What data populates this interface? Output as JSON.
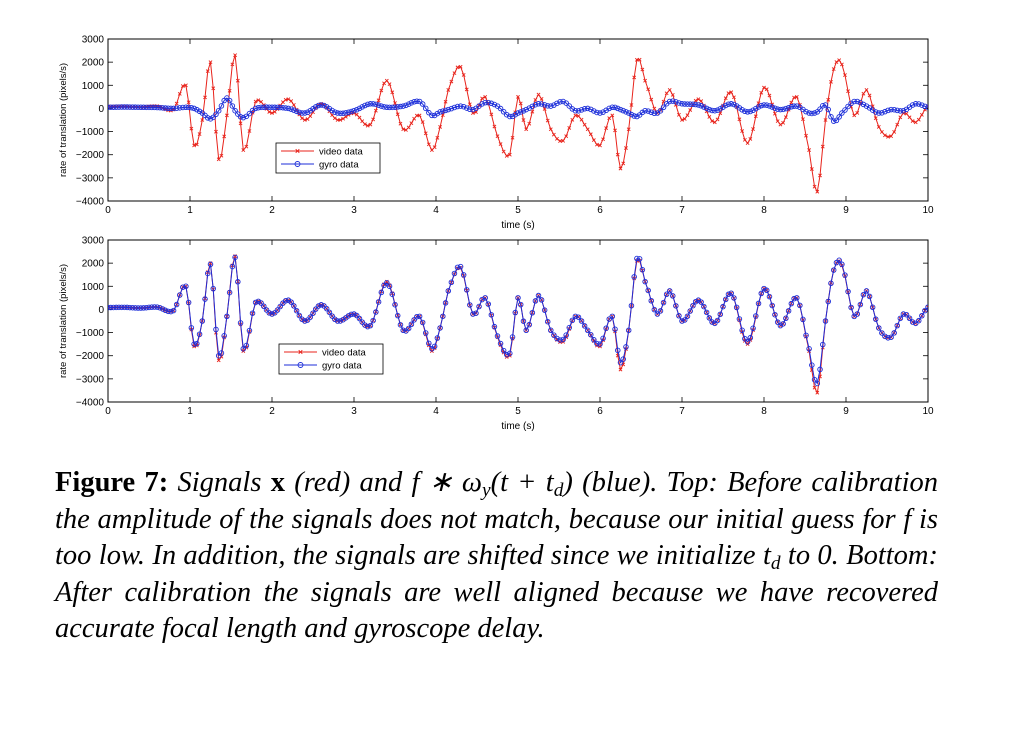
{
  "chart_data": [
    {
      "type": "line",
      "panel": "top",
      "xlabel": "time (s)",
      "ylabel": "rate of translation (pixels/s)",
      "xlim": [
        0,
        10
      ],
      "ylim": [
        -4000,
        3000
      ],
      "x_ticks": [
        "0",
        "1",
        "2",
        "3",
        "4",
        "5",
        "6",
        "7",
        "8",
        "9",
        "10"
      ],
      "y_ticks": [
        "3000",
        "2000",
        "1000",
        "0",
        "−1000",
        "−2000",
        "−3000",
        "−4000"
      ],
      "grid": false,
      "legend_position": "lower-left",
      "x": [
        0,
        0.2,
        0.4,
        0.6,
        0.8,
        0.95,
        1.05,
        1.15,
        1.25,
        1.35,
        1.45,
        1.55,
        1.65,
        1.8,
        2.0,
        2.2,
        2.4,
        2.6,
        2.8,
        3.0,
        3.2,
        3.4,
        3.6,
        3.8,
        3.95,
        4.05,
        4.15,
        4.3,
        4.45,
        4.6,
        4.75,
        4.9,
        5.0,
        5.1,
        5.25,
        5.4,
        5.55,
        5.7,
        5.85,
        6.0,
        6.15,
        6.25,
        6.35,
        6.45,
        6.55,
        6.7,
        6.85,
        7.0,
        7.2,
        7.4,
        7.6,
        7.8,
        8.0,
        8.2,
        8.4,
        8.55,
        8.65,
        8.75,
        8.85,
        8.95,
        9.1,
        9.25,
        9.4,
        9.55,
        9.7,
        9.85,
        10.0
      ],
      "series": [
        {
          "name": "video data",
          "color": "#e8231b",
          "marker": "x",
          "values": [
            80,
            90,
            60,
            100,
            -50,
            1000,
            -1600,
            -500,
            2000,
            -2200,
            -300,
            2300,
            -1800,
            300,
            -200,
            400,
            -500,
            200,
            -500,
            -200,
            -700,
            1200,
            -900,
            -300,
            -1800,
            -800,
            800,
            1800,
            -200,
            500,
            -1200,
            -2000,
            500,
            -900,
            600,
            -900,
            -1400,
            -300,
            -900,
            -1600,
            -300,
            -2600,
            -900,
            2100,
            1200,
            -200,
            800,
            -500,
            400,
            -600,
            700,
            -1500,
            900,
            -700,
            500,
            -1800,
            -3600,
            -500,
            1700,
            1900,
            -300,
            800,
            -800,
            -1200,
            -200,
            -600,
            100
          ]
        },
        {
          "name": "gyro data",
          "color": "#1c2ed9",
          "marker": "o",
          "values": [
            50,
            60,
            50,
            40,
            0,
            50,
            0,
            -200,
            -450,
            -100,
            450,
            -100,
            -400,
            0,
            50,
            0,
            -200,
            150,
            -200,
            -100,
            200,
            50,
            100,
            300,
            -300,
            -150,
            -50,
            100,
            -50,
            250,
            100,
            -350,
            -200,
            -50,
            200,
            100,
            300,
            -100,
            0,
            -200,
            50,
            -50,
            -200,
            -350,
            -100,
            -200,
            300,
            200,
            150,
            -100,
            200,
            -150,
            150,
            -50,
            100,
            -200,
            -150,
            150,
            -550,
            -200,
            300,
            100,
            -200,
            -50,
            -100,
            200,
            50
          ]
        }
      ]
    },
    {
      "type": "line",
      "panel": "bottom",
      "xlabel": "time (s)",
      "ylabel": "rate of translation (pixels/s)",
      "xlim": [
        0,
        10
      ],
      "ylim": [
        -4000,
        3000
      ],
      "x_ticks": [
        "0",
        "1",
        "2",
        "3",
        "4",
        "5",
        "6",
        "7",
        "8",
        "9",
        "10"
      ],
      "y_ticks": [
        "3000",
        "2000",
        "1000",
        "0",
        "−1000",
        "−2000",
        "−3000",
        "−4000"
      ],
      "grid": false,
      "legend_position": "lower-left",
      "x": [
        0,
        0.2,
        0.4,
        0.6,
        0.8,
        0.95,
        1.05,
        1.15,
        1.25,
        1.35,
        1.45,
        1.55,
        1.65,
        1.8,
        2.0,
        2.2,
        2.4,
        2.6,
        2.8,
        3.0,
        3.2,
        3.4,
        3.6,
        3.8,
        3.95,
        4.05,
        4.15,
        4.3,
        4.45,
        4.6,
        4.75,
        4.9,
        5.0,
        5.1,
        5.25,
        5.4,
        5.55,
        5.7,
        5.85,
        6.0,
        6.15,
        6.25,
        6.35,
        6.45,
        6.55,
        6.7,
        6.85,
        7.0,
        7.2,
        7.4,
        7.6,
        7.8,
        8.0,
        8.2,
        8.4,
        8.55,
        8.65,
        8.75,
        8.85,
        8.95,
        9.1,
        9.25,
        9.4,
        9.55,
        9.7,
        9.85,
        10.0
      ],
      "series": [
        {
          "name": "video data",
          "color": "#e8231b",
          "marker": "x",
          "values": [
            80,
            90,
            60,
            100,
            -50,
            1000,
            -1600,
            -500,
            2000,
            -2200,
            -300,
            2300,
            -1800,
            300,
            -200,
            400,
            -500,
            200,
            -500,
            -200,
            -700,
            1200,
            -900,
            -300,
            -1800,
            -800,
            800,
            1800,
            -200,
            500,
            -1200,
            -2000,
            500,
            -900,
            600,
            -900,
            -1400,
            -300,
            -900,
            -1600,
            -300,
            -2600,
            -900,
            2100,
            1200,
            -200,
            800,
            -500,
            400,
            -600,
            700,
            -1500,
            900,
            -700,
            500,
            -1800,
            -3600,
            -500,
            1700,
            1900,
            -300,
            800,
            -800,
            -1200,
            -200,
            -600,
            100
          ]
        },
        {
          "name": "gyro data",
          "color": "#1c2ed9",
          "marker": "o",
          "values": [
            80,
            90,
            60,
            100,
            -50,
            1000,
            -1500,
            -500,
            1950,
            -2000,
            -300,
            2250,
            -1700,
            300,
            -200,
            400,
            -500,
            200,
            -500,
            -200,
            -700,
            1150,
            -900,
            -300,
            -1700,
            -800,
            800,
            1850,
            -200,
            500,
            -1150,
            -1900,
            500,
            -900,
            600,
            -900,
            -1300,
            -300,
            -900,
            -1500,
            -300,
            -2300,
            -900,
            2200,
            1200,
            -200,
            800,
            -500,
            400,
            -600,
            700,
            -1400,
            900,
            -700,
            500,
            -1700,
            -3200,
            -500,
            1700,
            1950,
            -300,
            800,
            -800,
            -1200,
            -200,
            -600,
            100
          ]
        }
      ]
    }
  ],
  "caption": {
    "label": "Figure 7:",
    "t1": " Signals ",
    "x_sym": "x",
    "t2": " (red) and ",
    "f1": "f",
    "conv": " ∗ ",
    "omega": "ω",
    "omega_sub": "y",
    "paren_open": "(t + t",
    "td_sub1": "d",
    "paren_close": ")",
    "t3": " (blue). Top: Before calibration the amplitude of the signals does not match, because our initial guess for ",
    "f2": "f",
    "t4": " is too low. In addition, the signals are shifted since we initialize ",
    "t_sym": "t",
    "td_sub2": "d",
    "t5": " to 0. Bottom: After calibration the signals are well aligned because we have recovered accurate focal length and gyroscope delay."
  }
}
